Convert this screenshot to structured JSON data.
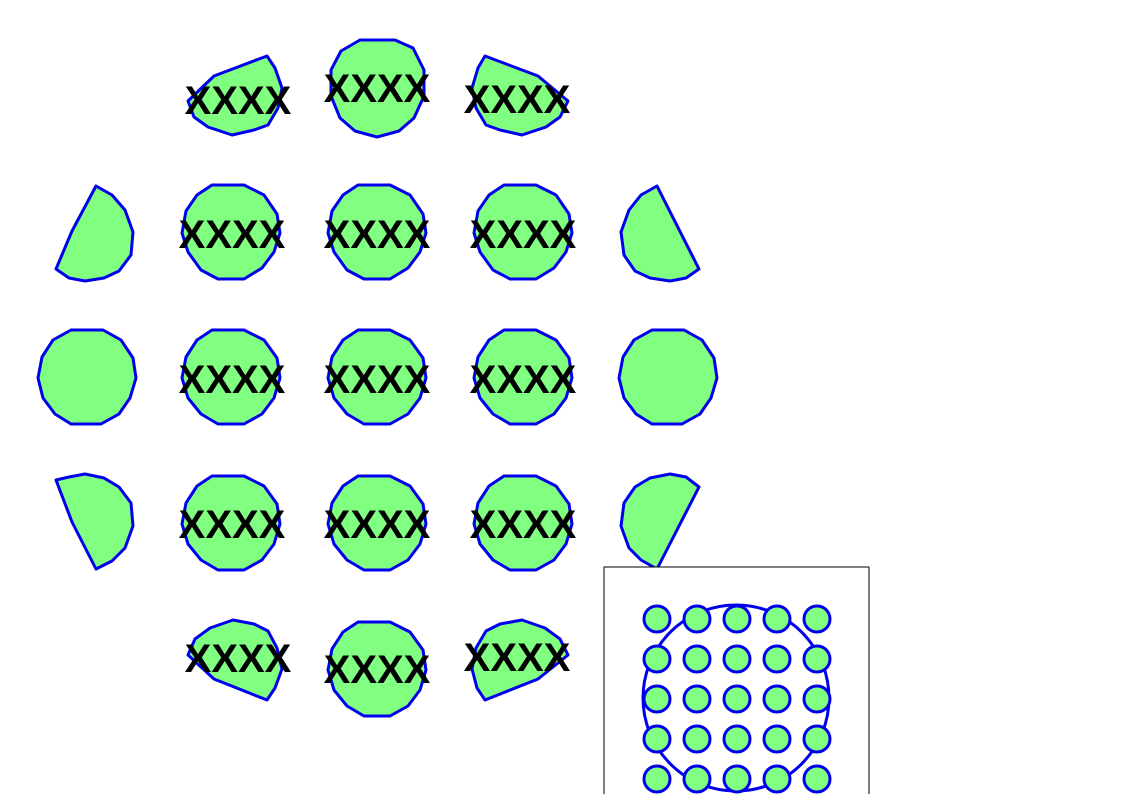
{
  "colors": {
    "fill": "#80ff80",
    "stroke": "#0000ee",
    "text": "#000000"
  },
  "cells": [
    {
      "id": "r1c2",
      "shape": "clipped-left",
      "label": "XXXX"
    },
    {
      "id": "r1c3",
      "shape": "full",
      "label": "XXXX"
    },
    {
      "id": "r1c4",
      "shape": "clipped-right",
      "label": "XXXX"
    },
    {
      "id": "r2c1",
      "shape": "clipped-topleft",
      "label": ""
    },
    {
      "id": "r2c2",
      "shape": "full",
      "label": "XXXX"
    },
    {
      "id": "r2c3",
      "shape": "full",
      "label": "XXXX"
    },
    {
      "id": "r2c4",
      "shape": "full",
      "label": "XXXX"
    },
    {
      "id": "r2c5",
      "shape": "clipped-topright",
      "label": ""
    },
    {
      "id": "r3c1",
      "shape": "full",
      "label": ""
    },
    {
      "id": "r3c2",
      "shape": "full",
      "label": "XXXX"
    },
    {
      "id": "r3c3",
      "shape": "full",
      "label": "XXXX"
    },
    {
      "id": "r3c4",
      "shape": "full",
      "label": "XXXX"
    },
    {
      "id": "r3c5",
      "shape": "full",
      "label": ""
    },
    {
      "id": "r4c1",
      "shape": "clipped-bottomleft",
      "label": ""
    },
    {
      "id": "r4c2",
      "shape": "full",
      "label": "XXXX"
    },
    {
      "id": "r4c3",
      "shape": "full",
      "label": "XXXX"
    },
    {
      "id": "r4c4",
      "shape": "full",
      "label": "XXXX"
    },
    {
      "id": "r4c5",
      "shape": "clipped-bottomright",
      "label": ""
    },
    {
      "id": "r5c2",
      "shape": "clipped-left",
      "label": "XXXX"
    },
    {
      "id": "r5c3",
      "shape": "full",
      "label": "XXXX"
    },
    {
      "id": "r5c4",
      "shape": "clipped-right",
      "label": "XXXX"
    }
  ],
  "inset": {
    "rows": 5,
    "cols": 5,
    "has_boundary_circle": true
  }
}
